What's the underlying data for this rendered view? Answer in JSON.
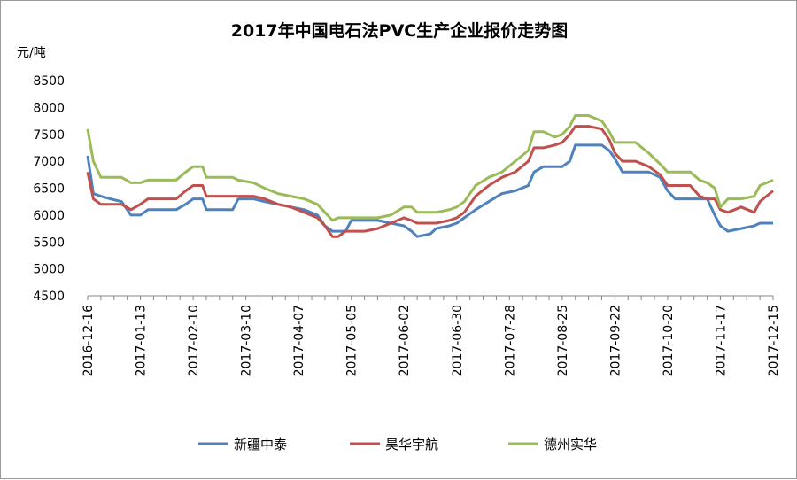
{
  "chart_data": {
    "type": "line",
    "title": "2017年中国电石法PVC生产企业报价走势图",
    "ylabel": "元/吨",
    "ylim": [
      4500,
      8500
    ],
    "yticks": [
      4500,
      5000,
      5500,
      6000,
      6500,
      7000,
      7500,
      8000,
      8500
    ],
    "xticks": [
      "2016-12-16",
      "2017-01-13",
      "2017-02-10",
      "2017-03-10",
      "2017-04-07",
      "2017-05-05",
      "2017-06-02",
      "2017-06-30",
      "2017-07-28",
      "2017-08-25",
      "2017-09-22",
      "2017-10-20",
      "2017-11-17",
      "2017-12-15"
    ],
    "x_axis_kind": "date (weekly tick labels, ~daily data)",
    "grid": false,
    "legend_position": "bottom",
    "series": [
      {
        "name": "新疆中泰",
        "color": "#4f81bd",
        "points": [
          [
            "2016-12-16",
            7100
          ],
          [
            "2016-12-19",
            6400
          ],
          [
            "2016-12-23",
            6350
          ],
          [
            "2016-12-28",
            6300
          ],
          [
            "2017-01-03",
            6250
          ],
          [
            "2017-01-08",
            6000
          ],
          [
            "2017-01-13",
            6000
          ],
          [
            "2017-01-17",
            6100
          ],
          [
            "2017-01-24",
            6100
          ],
          [
            "2017-02-01",
            6100
          ],
          [
            "2017-02-06",
            6200
          ],
          [
            "2017-02-10",
            6300
          ],
          [
            "2017-02-15",
            6300
          ],
          [
            "2017-02-17",
            6100
          ],
          [
            "2017-02-24",
            6100
          ],
          [
            "2017-03-03",
            6100
          ],
          [
            "2017-03-06",
            6300
          ],
          [
            "2017-03-14",
            6300
          ],
          [
            "2017-03-20",
            6250
          ],
          [
            "2017-03-27",
            6200
          ],
          [
            "2017-04-03",
            6150
          ],
          [
            "2017-04-10",
            6100
          ],
          [
            "2017-04-17",
            6000
          ],
          [
            "2017-04-21",
            5800
          ],
          [
            "2017-04-25",
            5700
          ],
          [
            "2017-04-28",
            5700
          ],
          [
            "2017-05-02",
            5700
          ],
          [
            "2017-05-05",
            5900
          ],
          [
            "2017-05-12",
            5900
          ],
          [
            "2017-05-19",
            5900
          ],
          [
            "2017-05-26",
            5850
          ],
          [
            "2017-06-02",
            5800
          ],
          [
            "2017-06-06",
            5700
          ],
          [
            "2017-06-09",
            5600
          ],
          [
            "2017-06-16",
            5650
          ],
          [
            "2017-06-19",
            5750
          ],
          [
            "2017-06-26",
            5800
          ],
          [
            "2017-06-30",
            5850
          ],
          [
            "2017-07-04",
            5950
          ],
          [
            "2017-07-10",
            6100
          ],
          [
            "2017-07-17",
            6250
          ],
          [
            "2017-07-24",
            6400
          ],
          [
            "2017-07-31",
            6450
          ],
          [
            "2017-08-07",
            6550
          ],
          [
            "2017-08-10",
            6800
          ],
          [
            "2017-08-15",
            6900
          ],
          [
            "2017-08-21",
            6900
          ],
          [
            "2017-08-25",
            6900
          ],
          [
            "2017-08-29",
            7000
          ],
          [
            "2017-09-01",
            7300
          ],
          [
            "2017-09-08",
            7300
          ],
          [
            "2017-09-15",
            7300
          ],
          [
            "2017-09-19",
            7200
          ],
          [
            "2017-09-22",
            7050
          ],
          [
            "2017-09-26",
            6800
          ],
          [
            "2017-10-03",
            6800
          ],
          [
            "2017-10-10",
            6800
          ],
          [
            "2017-10-16",
            6700
          ],
          [
            "2017-10-20",
            6450
          ],
          [
            "2017-10-24",
            6300
          ],
          [
            "2017-11-01",
            6300
          ],
          [
            "2017-11-06",
            6300
          ],
          [
            "2017-11-10",
            6300
          ],
          [
            "2017-11-14",
            6000
          ],
          [
            "2017-11-17",
            5800
          ],
          [
            "2017-11-21",
            5700
          ],
          [
            "2017-11-28",
            5750
          ],
          [
            "2017-12-05",
            5800
          ],
          [
            "2017-12-08",
            5850
          ],
          [
            "2017-12-15",
            5850
          ]
        ]
      },
      {
        "name": "昊华宇航",
        "color": "#c0504d",
        "points": [
          [
            "2016-12-16",
            6800
          ],
          [
            "2016-12-19",
            6300
          ],
          [
            "2016-12-23",
            6200
          ],
          [
            "2016-12-28",
            6200
          ],
          [
            "2017-01-03",
            6200
          ],
          [
            "2017-01-08",
            6100
          ],
          [
            "2017-01-13",
            6200
          ],
          [
            "2017-01-17",
            6300
          ],
          [
            "2017-01-24",
            6300
          ],
          [
            "2017-02-01",
            6300
          ],
          [
            "2017-02-06",
            6450
          ],
          [
            "2017-02-10",
            6550
          ],
          [
            "2017-02-15",
            6550
          ],
          [
            "2017-02-17",
            6350
          ],
          [
            "2017-02-24",
            6350
          ],
          [
            "2017-03-03",
            6350
          ],
          [
            "2017-03-06",
            6350
          ],
          [
            "2017-03-14",
            6350
          ],
          [
            "2017-03-20",
            6300
          ],
          [
            "2017-03-27",
            6200
          ],
          [
            "2017-04-03",
            6150
          ],
          [
            "2017-04-10",
            6050
          ],
          [
            "2017-04-17",
            5950
          ],
          [
            "2017-04-21",
            5800
          ],
          [
            "2017-04-25",
            5600
          ],
          [
            "2017-04-28",
            5600
          ],
          [
            "2017-05-02",
            5700
          ],
          [
            "2017-05-05",
            5700
          ],
          [
            "2017-05-12",
            5700
          ],
          [
            "2017-05-19",
            5750
          ],
          [
            "2017-05-26",
            5850
          ],
          [
            "2017-06-02",
            5950
          ],
          [
            "2017-06-06",
            5900
          ],
          [
            "2017-06-09",
            5850
          ],
          [
            "2017-06-16",
            5850
          ],
          [
            "2017-06-19",
            5850
          ],
          [
            "2017-06-26",
            5900
          ],
          [
            "2017-06-30",
            5950
          ],
          [
            "2017-07-04",
            6050
          ],
          [
            "2017-07-10",
            6350
          ],
          [
            "2017-07-17",
            6550
          ],
          [
            "2017-07-24",
            6700
          ],
          [
            "2017-07-31",
            6800
          ],
          [
            "2017-08-07",
            7000
          ],
          [
            "2017-08-10",
            7250
          ],
          [
            "2017-08-15",
            7250
          ],
          [
            "2017-08-21",
            7300
          ],
          [
            "2017-08-25",
            7350
          ],
          [
            "2017-08-29",
            7500
          ],
          [
            "2017-09-01",
            7650
          ],
          [
            "2017-09-08",
            7650
          ],
          [
            "2017-09-15",
            7600
          ],
          [
            "2017-09-19",
            7400
          ],
          [
            "2017-09-22",
            7150
          ],
          [
            "2017-09-26",
            7000
          ],
          [
            "2017-10-03",
            7000
          ],
          [
            "2017-10-10",
            6900
          ],
          [
            "2017-10-16",
            6750
          ],
          [
            "2017-10-20",
            6550
          ],
          [
            "2017-10-24",
            6550
          ],
          [
            "2017-11-01",
            6550
          ],
          [
            "2017-11-06",
            6350
          ],
          [
            "2017-11-10",
            6300
          ],
          [
            "2017-11-14",
            6300
          ],
          [
            "2017-11-17",
            6100
          ],
          [
            "2017-11-21",
            6050
          ],
          [
            "2017-11-28",
            6150
          ],
          [
            "2017-12-05",
            6050
          ],
          [
            "2017-12-08",
            6250
          ],
          [
            "2017-12-15",
            6450
          ]
        ]
      },
      {
        "name": "德州实华",
        "color": "#9bbb59",
        "points": [
          [
            "2016-12-16",
            7600
          ],
          [
            "2016-12-19",
            7000
          ],
          [
            "2016-12-23",
            6700
          ],
          [
            "2016-12-28",
            6700
          ],
          [
            "2017-01-03",
            6700
          ],
          [
            "2017-01-08",
            6600
          ],
          [
            "2017-01-13",
            6600
          ],
          [
            "2017-01-17",
            6650
          ],
          [
            "2017-01-24",
            6650
          ],
          [
            "2017-02-01",
            6650
          ],
          [
            "2017-02-06",
            6800
          ],
          [
            "2017-02-10",
            6900
          ],
          [
            "2017-02-15",
            6900
          ],
          [
            "2017-02-17",
            6700
          ],
          [
            "2017-02-24",
            6700
          ],
          [
            "2017-03-03",
            6700
          ],
          [
            "2017-03-06",
            6650
          ],
          [
            "2017-03-14",
            6600
          ],
          [
            "2017-03-20",
            6500
          ],
          [
            "2017-03-27",
            6400
          ],
          [
            "2017-04-03",
            6350
          ],
          [
            "2017-04-10",
            6300
          ],
          [
            "2017-04-17",
            6200
          ],
          [
            "2017-04-21",
            6050
          ],
          [
            "2017-04-25",
            5900
          ],
          [
            "2017-04-28",
            5950
          ],
          [
            "2017-05-02",
            5950
          ],
          [
            "2017-05-05",
            5950
          ],
          [
            "2017-05-12",
            5950
          ],
          [
            "2017-05-19",
            5950
          ],
          [
            "2017-05-26",
            6000
          ],
          [
            "2017-06-02",
            6150
          ],
          [
            "2017-06-06",
            6150
          ],
          [
            "2017-06-09",
            6050
          ],
          [
            "2017-06-16",
            6050
          ],
          [
            "2017-06-19",
            6050
          ],
          [
            "2017-06-26",
            6100
          ],
          [
            "2017-06-30",
            6150
          ],
          [
            "2017-07-04",
            6250
          ],
          [
            "2017-07-10",
            6550
          ],
          [
            "2017-07-17",
            6700
          ],
          [
            "2017-07-24",
            6800
          ],
          [
            "2017-07-31",
            7000
          ],
          [
            "2017-08-07",
            7200
          ],
          [
            "2017-08-10",
            7550
          ],
          [
            "2017-08-15",
            7550
          ],
          [
            "2017-08-21",
            7450
          ],
          [
            "2017-08-25",
            7500
          ],
          [
            "2017-08-29",
            7650
          ],
          [
            "2017-09-01",
            7850
          ],
          [
            "2017-09-08",
            7850
          ],
          [
            "2017-09-15",
            7750
          ],
          [
            "2017-09-19",
            7550
          ],
          [
            "2017-09-22",
            7350
          ],
          [
            "2017-09-26",
            7350
          ],
          [
            "2017-10-03",
            7350
          ],
          [
            "2017-10-10",
            7150
          ],
          [
            "2017-10-16",
            6950
          ],
          [
            "2017-10-20",
            6800
          ],
          [
            "2017-10-24",
            6800
          ],
          [
            "2017-11-01",
            6800
          ],
          [
            "2017-11-06",
            6650
          ],
          [
            "2017-11-10",
            6600
          ],
          [
            "2017-11-14",
            6500
          ],
          [
            "2017-11-17",
            6150
          ],
          [
            "2017-11-21",
            6300
          ],
          [
            "2017-11-28",
            6300
          ],
          [
            "2017-12-05",
            6350
          ],
          [
            "2017-12-08",
            6550
          ],
          [
            "2017-12-15",
            6650
          ]
        ]
      }
    ]
  }
}
